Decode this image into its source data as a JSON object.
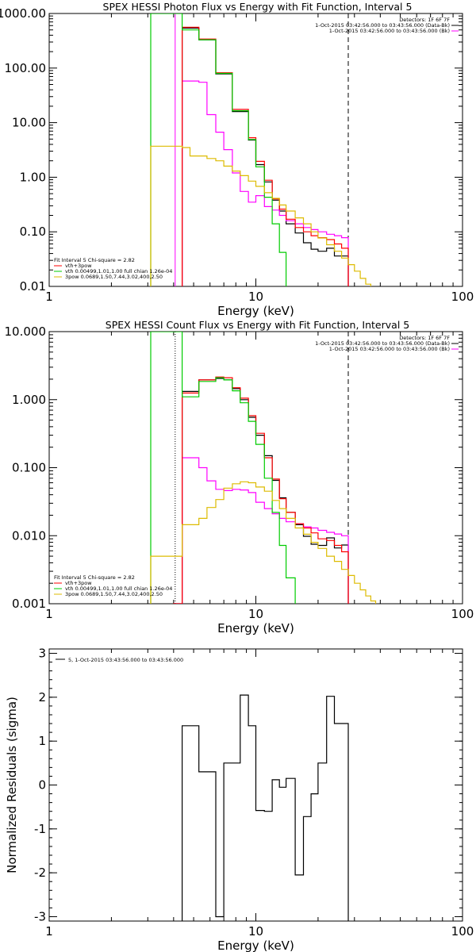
{
  "chart_data": [
    {
      "type": "line",
      "title": "SPEX HESSI Photon Flux vs Energy with Fit Function, Interval 5",
      "xlabel": "Energy (keV)",
      "ylabel": "",
      "xscale": "log",
      "yscale": "log",
      "xlim": [
        1,
        100
      ],
      "ylim": [
        0.01,
        1000
      ],
      "xticks": [
        {
          "v": 1,
          "label": "1"
        },
        {
          "v": 10,
          "label": "10"
        },
        {
          "v": 100,
          "label": "100"
        }
      ],
      "yticks": [
        {
          "v": 0.01,
          "label": "0.01"
        },
        {
          "v": 0.1,
          "label": "0.10"
        },
        {
          "v": 1,
          "label": "1.00"
        },
        {
          "v": 10,
          "label": "10.00"
        },
        {
          "v": 100,
          "label": "100.00"
        },
        {
          "v": 1000,
          "label": "1000.00"
        }
      ],
      "info_top_right": [
        "Detectors: 1F 6F 7F",
        "1-Oct-2015 03:42:56.000 to 03:43:56.000 (Data-Bk)",
        "1-Oct-2015 03:42:56.000 to 03:43:56.000 (Bk)"
      ],
      "info_bottom_left": [
        "Fit Interval 5   Chi-square = 2.82",
        "vth+3pow",
        "vth 0.00499,1.01,1.00  full chian 1.26e-04",
        "3pow 0.0689,1.50,7.44,3.02,400,2.50"
      ],
      "vlines": [
        {
          "x": 4.07,
          "style": "solid",
          "color": "#ff00ff"
        },
        {
          "x": 28,
          "style": "dashed",
          "color": "#000000"
        }
      ],
      "series": [
        {
          "name": "Data-Bk",
          "color": "#000000",
          "x": [
            4,
            4.4,
            4.8,
            5.3,
            5.8,
            6.4,
            7,
            7.7,
            8.4,
            9.2,
            10,
            11,
            12,
            13,
            14,
            15.5,
            17,
            18.5,
            20,
            22,
            24,
            26,
            28
          ],
          "y": [
            0.001,
            540,
            540,
            330,
            330,
            78,
            78,
            16,
            16,
            4.8,
            1.7,
            0.82,
            0.38,
            0.24,
            0.14,
            0.095,
            0.063,
            0.048,
            0.044,
            0.05,
            0.036,
            0.036,
            0.001
          ]
        },
        {
          "name": "Bk",
          "color": "#ff00ff",
          "x": [
            4.07,
            4.4,
            4.8,
            5.3,
            5.8,
            6.4,
            7,
            7.7,
            8.4,
            9.2,
            10,
            11,
            12,
            13,
            14,
            15.5,
            17,
            18.5,
            20,
            22,
            24,
            26,
            28
          ],
          "y": [
            0.001,
            58,
            58,
            55,
            14,
            6.7,
            3.2,
            1.2,
            0.55,
            0.35,
            0.46,
            0.29,
            0.25,
            0.2,
            0.16,
            0.14,
            0.12,
            0.11,
            0.1,
            0.09,
            0.085,
            0.078,
            0.001
          ]
        },
        {
          "name": "vth+3pow",
          "color": "#ff0000",
          "x": [
            4,
            4.4,
            4.8,
            5.3,
            5.8,
            6.4,
            7,
            7.7,
            8.4,
            9.2,
            10,
            11,
            12,
            13,
            14,
            15.5,
            17,
            18.5,
            20,
            22,
            24,
            26,
            28
          ],
          "y": [
            0.001,
            560,
            560,
            340,
            340,
            82,
            82,
            17.5,
            17.5,
            5.3,
            1.95,
            0.88,
            0.4,
            0.26,
            0.17,
            0.12,
            0.1,
            0.085,
            0.078,
            0.072,
            0.06,
            0.05,
            0.001
          ]
        },
        {
          "name": "vth",
          "color": "#00cc00",
          "x": [
            3.1,
            4.4,
            4.8,
            5.3,
            5.8,
            6.4,
            7,
            7.7,
            8.4,
            9.2,
            10,
            11,
            12,
            13,
            14
          ],
          "y": [
            1000,
            500,
            500,
            330,
            330,
            80,
            80,
            16.5,
            16.5,
            4.9,
            1.55,
            0.43,
            0.14,
            0.042,
            0.009
          ]
        },
        {
          "name": "3pow",
          "color": "#ddbb00",
          "x": [
            3.1,
            4.4,
            4.8,
            5.3,
            5.8,
            6.4,
            7,
            7.7,
            8.4,
            9.2,
            10,
            11,
            12,
            13,
            14,
            15.5,
            17,
            18.5,
            20,
            22,
            24,
            26,
            28,
            30,
            32,
            34,
            36
          ],
          "y": [
            3.7,
            3.5,
            2.45,
            2.45,
            2.2,
            2,
            1.6,
            1.3,
            1.07,
            0.85,
            0.68,
            0.52,
            0.41,
            0.31,
            0.24,
            0.18,
            0.14,
            0.1,
            0.077,
            0.058,
            0.044,
            0.033,
            0.025,
            0.019,
            0.014,
            0.011,
            0.009
          ]
        }
      ]
    },
    {
      "type": "line",
      "title": "SPEX HESSI Count Flux vs Energy with Fit Function, Interval 5",
      "xlabel": "Energy (keV)",
      "ylabel": "",
      "xscale": "log",
      "yscale": "log",
      "xlim": [
        1,
        100
      ],
      "ylim": [
        0.001,
        10
      ],
      "xticks": [
        {
          "v": 1,
          "label": "1"
        },
        {
          "v": 10,
          "label": "10"
        },
        {
          "v": 100,
          "label": "100"
        }
      ],
      "yticks": [
        {
          "v": 0.001,
          "label": "0.001"
        },
        {
          "v": 0.01,
          "label": "0.010"
        },
        {
          "v": 0.1,
          "label": "0.100"
        },
        {
          "v": 1,
          "label": "1.000"
        },
        {
          "v": 10,
          "label": "10.000"
        }
      ],
      "info_top_right": [
        "Detectors: 1F 6F 7F",
        "1-Oct-2015 03:42:56.000 to 03:43:56.000 (Data-Bk)",
        "1-Oct-2015 03:42:56.000 to 03:43:56.000 (Bk)"
      ],
      "info_bottom_left": [
        "Fit Interval 5   Chi-square = 2.82",
        "vth+3pow",
        "vth 0.00499,1.01,1.00  full chian 1.26e-04",
        "3pow 0.0689,1.50,7.44,3.02,400,2.50"
      ],
      "vlines": [
        {
          "x": 4.07,
          "style": "dotted",
          "color": "#000000"
        },
        {
          "x": 28,
          "style": "dashed",
          "color": "#000000"
        }
      ],
      "series": [
        {
          "name": "Data-Bk",
          "color": "#000000",
          "x": [
            4,
            4.4,
            5.3,
            6.4,
            7,
            7.7,
            8.4,
            9.2,
            10,
            11,
            12,
            13,
            14,
            15.5,
            17,
            18.5,
            20,
            22,
            24,
            26,
            28
          ],
          "y": [
            0.001,
            1.32,
            1.95,
            2.05,
            1.95,
            1.45,
            1,
            0.55,
            0.3,
            0.15,
            0.065,
            0.036,
            0.022,
            0.0145,
            0.0098,
            0.0075,
            0.0072,
            0.0093,
            0.0066,
            0.0073,
            0.001
          ]
        },
        {
          "name": "Bk",
          "color": "#ff00ff",
          "x": [
            4.07,
            4.4,
            5.3,
            5.8,
            6.4,
            7,
            7.7,
            8.4,
            9.2,
            10,
            11,
            12,
            13,
            14,
            15.5,
            17,
            18.5,
            20,
            22,
            24,
            26,
            28
          ],
          "y": [
            0.001,
            0.14,
            0.1,
            0.064,
            0.048,
            0.046,
            0.048,
            0.047,
            0.043,
            0.031,
            0.025,
            0.021,
            0.018,
            0.016,
            0.015,
            0.0135,
            0.013,
            0.012,
            0.0112,
            0.0106,
            0.01,
            0.001
          ]
        },
        {
          "name": "vth+3pow",
          "color": "#ff0000",
          "x": [
            4,
            4.4,
            5.3,
            6.4,
            7,
            7.7,
            8.4,
            9.2,
            10,
            11,
            12,
            13,
            14,
            15.5,
            17,
            18.5,
            20,
            22,
            24,
            26,
            28
          ],
          "y": [
            0.001,
            1.25,
            1.95,
            2.15,
            2.1,
            1.5,
            1.05,
            0.58,
            0.32,
            0.14,
            0.068,
            0.035,
            0.022,
            0.015,
            0.013,
            0.011,
            0.009,
            0.0085,
            0.0072,
            0.0058,
            0.001
          ]
        },
        {
          "name": "vth",
          "color": "#00cc00",
          "x": [
            3.1,
            4.4,
            5.3,
            6.4,
            7,
            7.7,
            8.4,
            9.2,
            10,
            11,
            12,
            13,
            14,
            15.5
          ],
          "y": [
            10,
            1.1,
            1.85,
            2.1,
            1.95,
            1.35,
            0.9,
            0.48,
            0.22,
            0.07,
            0.022,
            0.0072,
            0.0024,
            0.0009
          ]
        },
        {
          "name": "3pow",
          "color": "#ddbb00",
          "x": [
            3.1,
            4.4,
            5.3,
            5.8,
            6.4,
            7,
            7.7,
            8.4,
            9.2,
            10,
            11,
            12,
            13,
            14,
            15.5,
            17,
            18.5,
            20,
            22,
            24,
            26,
            28,
            30,
            32,
            34,
            36,
            38,
            40
          ],
          "y": [
            0.005,
            0.0145,
            0.018,
            0.026,
            0.034,
            0.05,
            0.058,
            0.062,
            0.06,
            0.052,
            0.045,
            0.033,
            0.025,
            0.018,
            0.013,
            0.0105,
            0.008,
            0.0065,
            0.005,
            0.0042,
            0.0032,
            0.0026,
            0.002,
            0.0016,
            0.0013,
            0.0011,
            0.0009,
            0.0008
          ]
        }
      ]
    },
    {
      "type": "line",
      "title": "",
      "xlabel": "Energy (keV)",
      "ylabel": "Normalized Residuals (sigma)",
      "xscale": "log",
      "yscale": "linear",
      "xlim": [
        1,
        100
      ],
      "ylim": [
        -3.1,
        3.1
      ],
      "xticks": [
        {
          "v": 1,
          "label": "1"
        },
        {
          "v": 10,
          "label": "10"
        },
        {
          "v": 100,
          "label": "100"
        }
      ],
      "yticks": [
        {
          "v": -3,
          "label": "-3"
        },
        {
          "v": -2,
          "label": "-2"
        },
        {
          "v": -1,
          "label": "-1"
        },
        {
          "v": 0,
          "label": "0"
        },
        {
          "v": 1,
          "label": "1"
        },
        {
          "v": 2,
          "label": "2"
        },
        {
          "v": 3,
          "label": "3"
        }
      ],
      "legend_text": "5,  1-Oct-2015 03:43:56.000 to 03:43:56.000",
      "series": [
        {
          "name": "5",
          "color": "#000000",
          "x": [
            4.07,
            4.4,
            4.8,
            5.3,
            5.8,
            6.4,
            7,
            7.7,
            8.4,
            9.2,
            10,
            11,
            12,
            13,
            14,
            15.5,
            17,
            18.5,
            20,
            22,
            24,
            26,
            28
          ],
          "y": [
            -3.2,
            1.35,
            1.35,
            0.3,
            0.3,
            -3,
            0.5,
            0.5,
            2.05,
            1.35,
            -0.58,
            -0.6,
            0.12,
            -0.05,
            0.15,
            -2.05,
            -0.72,
            -0.2,
            0.5,
            2.02,
            1.4,
            1.4,
            -3.2
          ]
        }
      ]
    }
  ]
}
